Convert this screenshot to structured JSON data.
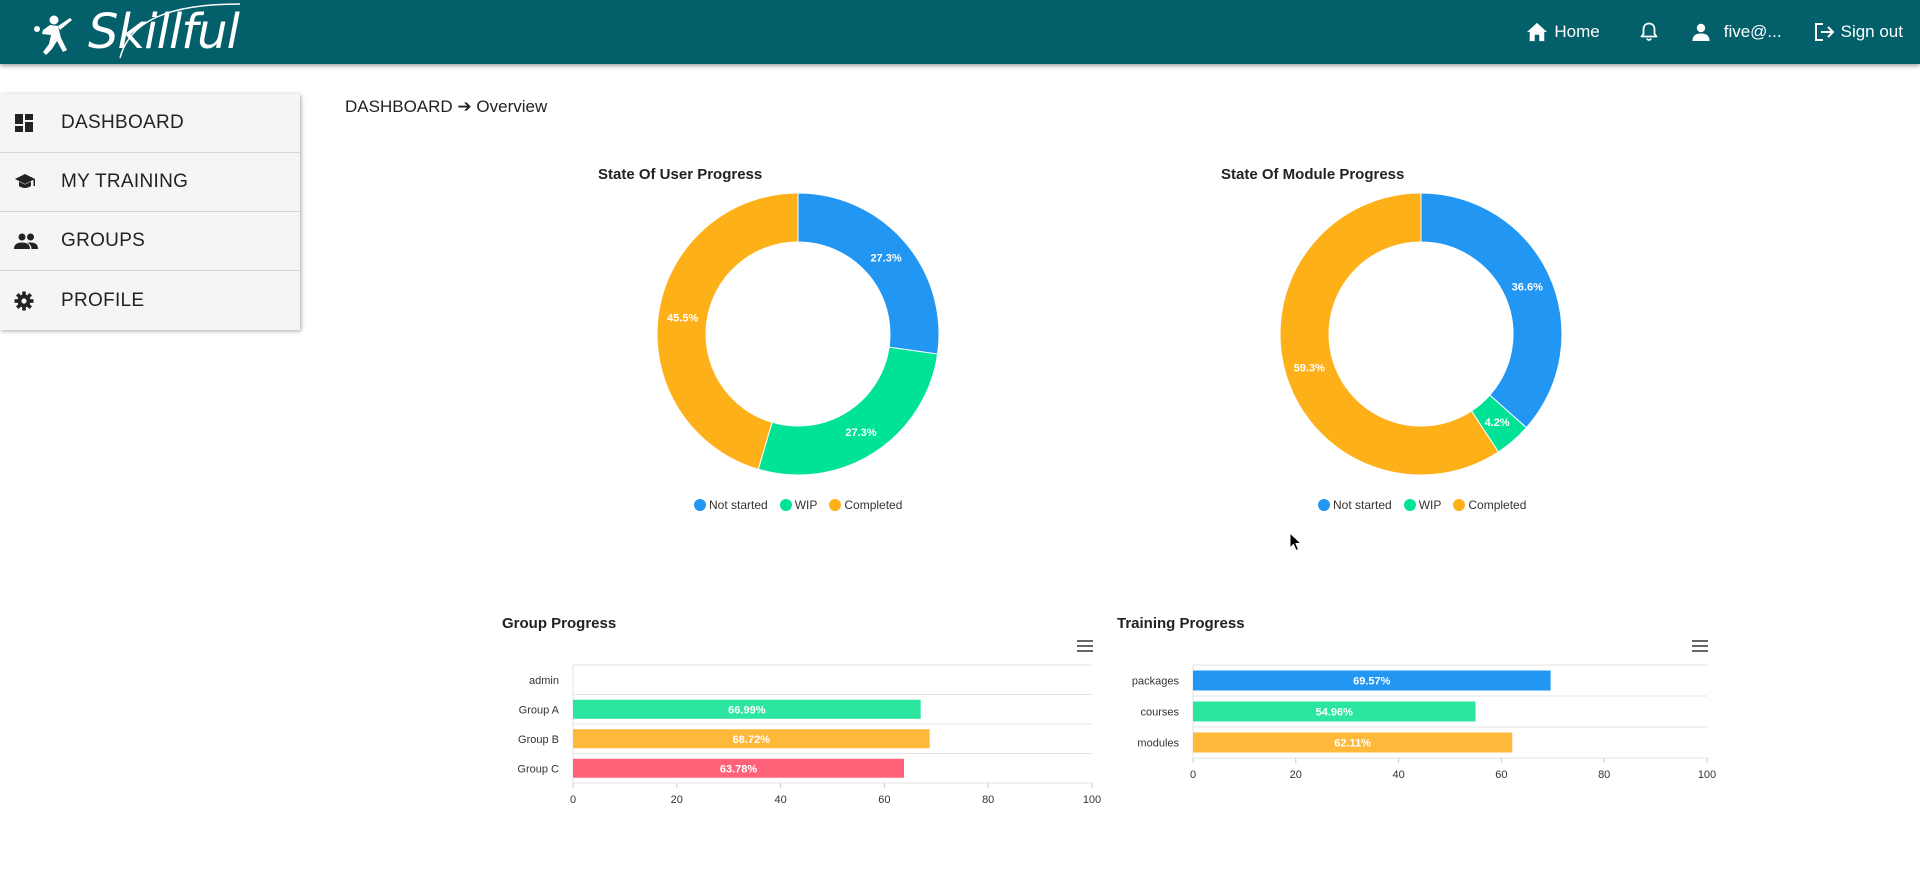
{
  "app": {
    "name": "Skillful"
  },
  "header": {
    "home_label": "Home",
    "user_label": "five@...",
    "signout_label": "Sign out"
  },
  "sidebar": {
    "items": [
      {
        "label": "DASHBOARD",
        "icon": "dashboard-icon"
      },
      {
        "label": "MY TRAINING",
        "icon": "graduation-cap-icon"
      },
      {
        "label": "GROUPS",
        "icon": "people-icon"
      },
      {
        "label": "PROFILE",
        "icon": "gear-icon"
      }
    ]
  },
  "breadcrumb": {
    "section": "DASHBOARD",
    "arrow": "➔",
    "page": "Overview"
  },
  "colors": {
    "header_bg": "#035f69",
    "blue": "#2196f3",
    "green": "#00e396",
    "orange": "#feb019",
    "red": "#ff4560"
  },
  "chart_data": [
    {
      "type": "pie",
      "variant": "donut",
      "title": "State Of User Progress",
      "labels": [
        "Not started",
        "WIP",
        "Completed"
      ],
      "values": [
        27.3,
        27.3,
        45.5
      ],
      "data_labels": [
        "27.3%",
        "27.3%",
        "45.5%"
      ],
      "colors": [
        "#2196f3",
        "#00e396",
        "#feb019"
      ],
      "legend": "bottom"
    },
    {
      "type": "pie",
      "variant": "donut",
      "title": "State Of Module Progress",
      "labels": [
        "Not started",
        "WIP",
        "Completed"
      ],
      "values": [
        36.6,
        4.2,
        59.3
      ],
      "data_labels": [
        "36.6%",
        "4.2%",
        "59.3%"
      ],
      "colors": [
        "#2196f3",
        "#00e396",
        "#feb019"
      ],
      "legend": "bottom"
    },
    {
      "type": "bar",
      "orientation": "horizontal",
      "title": "Group Progress",
      "categories": [
        "admin",
        "Group A",
        "Group B",
        "Group C"
      ],
      "values": [
        0,
        66.99,
        68.72,
        63.78
      ],
      "data_labels": [
        "",
        "66.99%",
        "68.72%",
        "63.78%"
      ],
      "colors": [
        "#2196f3",
        "#2ce6a0",
        "#feb93a",
        "#ff6178"
      ],
      "xlim": [
        0,
        100
      ],
      "xticks": [
        "0",
        "20",
        "40",
        "60",
        "80",
        "100"
      ]
    },
    {
      "type": "bar",
      "orientation": "horizontal",
      "title": "Training Progress",
      "categories": [
        "packages",
        "courses",
        "modules"
      ],
      "values": [
        69.57,
        54.96,
        62.11
      ],
      "data_labels": [
        "69.57%",
        "54.96%",
        "62.11%"
      ],
      "colors": [
        "#2196f3",
        "#2ce6a0",
        "#feb93a"
      ],
      "xlim": [
        0,
        100
      ],
      "xticks": [
        "0",
        "20",
        "40",
        "60",
        "80",
        "100"
      ]
    }
  ]
}
